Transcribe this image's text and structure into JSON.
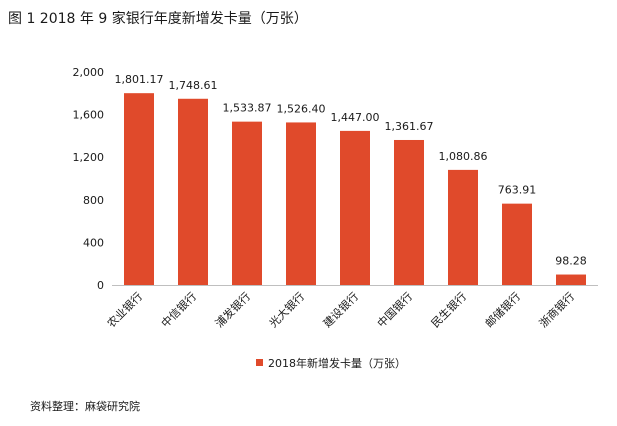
{
  "figure_title": "图 1  2018 年 9 家银行年度新增发卡量（万张）",
  "source_note": "资料整理：麻袋研究院",
  "colors": {
    "bar": "#e04a2b",
    "axis": "#bfbfbf"
  },
  "chart_data": {
    "type": "bar",
    "categories": [
      "农业银行",
      "中信银行",
      "浦发银行",
      "光大银行",
      "建设银行",
      "中国银行",
      "民生银行",
      "邮储银行",
      "浙商银行"
    ],
    "series": [
      {
        "name": "2018年新增发卡量（万张）",
        "values": [
          1801.17,
          1748.61,
          1533.87,
          1526.4,
          1447.0,
          1361.67,
          1080.86,
          763.91,
          98.28
        ]
      }
    ],
    "data_labels": [
      "1,801.17",
      "1,748.61",
      "1,533.87",
      "1,526.40",
      "1,447.00",
      "1,361.67",
      "1,080.86",
      "763.91",
      "98.28"
    ],
    "yticks": [
      "0",
      "400",
      "800",
      "1,200",
      "1,600",
      "2,000"
    ],
    "ylim": [
      0,
      2000
    ],
    "ytick_values": [
      0,
      400,
      800,
      1200,
      1600,
      2000
    ],
    "grid": false,
    "legend_position": "bottom"
  }
}
